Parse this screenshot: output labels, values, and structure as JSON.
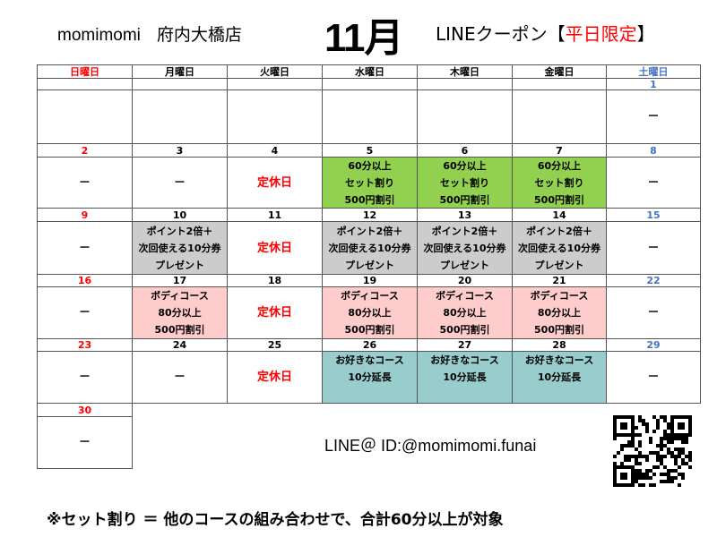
{
  "header": {
    "shop_brand": "momimomi",
    "shop_branch": "府内大橋店",
    "month": "11月",
    "coupon_prefix": "LINEクーポン【",
    "coupon_highlight": "平日限定",
    "coupon_suffix": "】"
  },
  "colors": {
    "sunday": "#ff0000",
    "saturday": "#4472c4",
    "weekday": "#000000",
    "closed": "#ff0000",
    "green": "#92d050",
    "gray": "#cccccc",
    "pink": "#ffcccc",
    "teal": "#99cccc"
  },
  "weekdays": [
    "日曜日",
    "月曜日",
    "火曜日",
    "水曜日",
    "木曜日",
    "金曜日",
    "土曜日"
  ],
  "weeks": [
    {
      "dates": [
        "",
        "",
        "",
        "",
        "",
        "",
        "1"
      ],
      "cells": [
        {},
        {},
        {},
        {},
        {},
        {},
        {
          "lines": [
            "－"
          ]
        }
      ]
    },
    {
      "dates": [
        "2",
        "3",
        "4",
        "5",
        "6",
        "7",
        "8"
      ],
      "cells": [
        {
          "lines": [
            "－"
          ]
        },
        {
          "lines": [
            "－"
          ]
        },
        {
          "lines": [
            "定休日"
          ],
          "closed": true
        },
        {
          "lines": [
            "60分以上",
            "セット割り",
            "500円割引"
          ],
          "bg": "green"
        },
        {
          "lines": [
            "60分以上",
            "セット割り",
            "500円割引"
          ],
          "bg": "green"
        },
        {
          "lines": [
            "60分以上",
            "セット割り",
            "500円割引"
          ],
          "bg": "green"
        },
        {
          "lines": [
            "－"
          ]
        }
      ]
    },
    {
      "dates": [
        "9",
        "10",
        "11",
        "12",
        "13",
        "14",
        "15"
      ],
      "cells": [
        {
          "lines": [
            "－"
          ]
        },
        {
          "lines": [
            "ポイント2倍＋",
            "次回使える10分券",
            "プレゼント"
          ],
          "bg": "gray"
        },
        {
          "lines": [
            "定休日"
          ],
          "closed": true
        },
        {
          "lines": [
            "ポイント2倍＋",
            "次回使える10分券",
            "プレゼント"
          ],
          "bg": "gray"
        },
        {
          "lines": [
            "ポイント2倍＋",
            "次回使える10分券",
            "プレゼント"
          ],
          "bg": "gray"
        },
        {
          "lines": [
            "ポイント2倍＋",
            "次回使える10分券",
            "プレゼント"
          ],
          "bg": "gray"
        },
        {
          "lines": [
            "－"
          ]
        }
      ]
    },
    {
      "dates": [
        "16",
        "17",
        "18",
        "19",
        "20",
        "21",
        "22"
      ],
      "cells": [
        {
          "lines": [
            "－"
          ]
        },
        {
          "lines": [
            "ボディコース",
            "80分以上",
            "500円割引"
          ],
          "bg": "pink"
        },
        {
          "lines": [
            "定休日"
          ],
          "closed": true
        },
        {
          "lines": [
            "ボディコース",
            "80分以上",
            "500円割引"
          ],
          "bg": "pink"
        },
        {
          "lines": [
            "ボディコース",
            "80分以上",
            "500円割引"
          ],
          "bg": "pink"
        },
        {
          "lines": [
            "ボディコース",
            "80分以上",
            "500円割引"
          ],
          "bg": "pink"
        },
        {
          "lines": [
            "－"
          ]
        }
      ]
    },
    {
      "dates": [
        "23",
        "24",
        "25",
        "26",
        "27",
        "28",
        "29"
      ],
      "cells": [
        {
          "lines": [
            "－"
          ]
        },
        {
          "lines": [
            "－"
          ]
        },
        {
          "lines": [
            "定休日"
          ],
          "closed": true
        },
        {
          "lines": [
            "お好きなコース",
            "10分延長"
          ],
          "bg": "teal",
          "top": true
        },
        {
          "lines": [
            "お好きなコース",
            "10分延長"
          ],
          "bg": "teal",
          "top": true
        },
        {
          "lines": [
            "お好きなコース",
            "10分延長"
          ],
          "bg": "teal",
          "top": true
        },
        {
          "lines": [
            "－"
          ]
        }
      ]
    },
    {
      "dates": [
        "30"
      ],
      "cells": [
        {
          "lines": [
            "－"
          ]
        }
      ]
    }
  ],
  "line_id": "LINE＠ ID:@momimomi.funai",
  "footnote": "※セット割り ＝ 他のコースの組み合わせで、合計60分以上が対象",
  "qr_icon": "qr-code-icon"
}
